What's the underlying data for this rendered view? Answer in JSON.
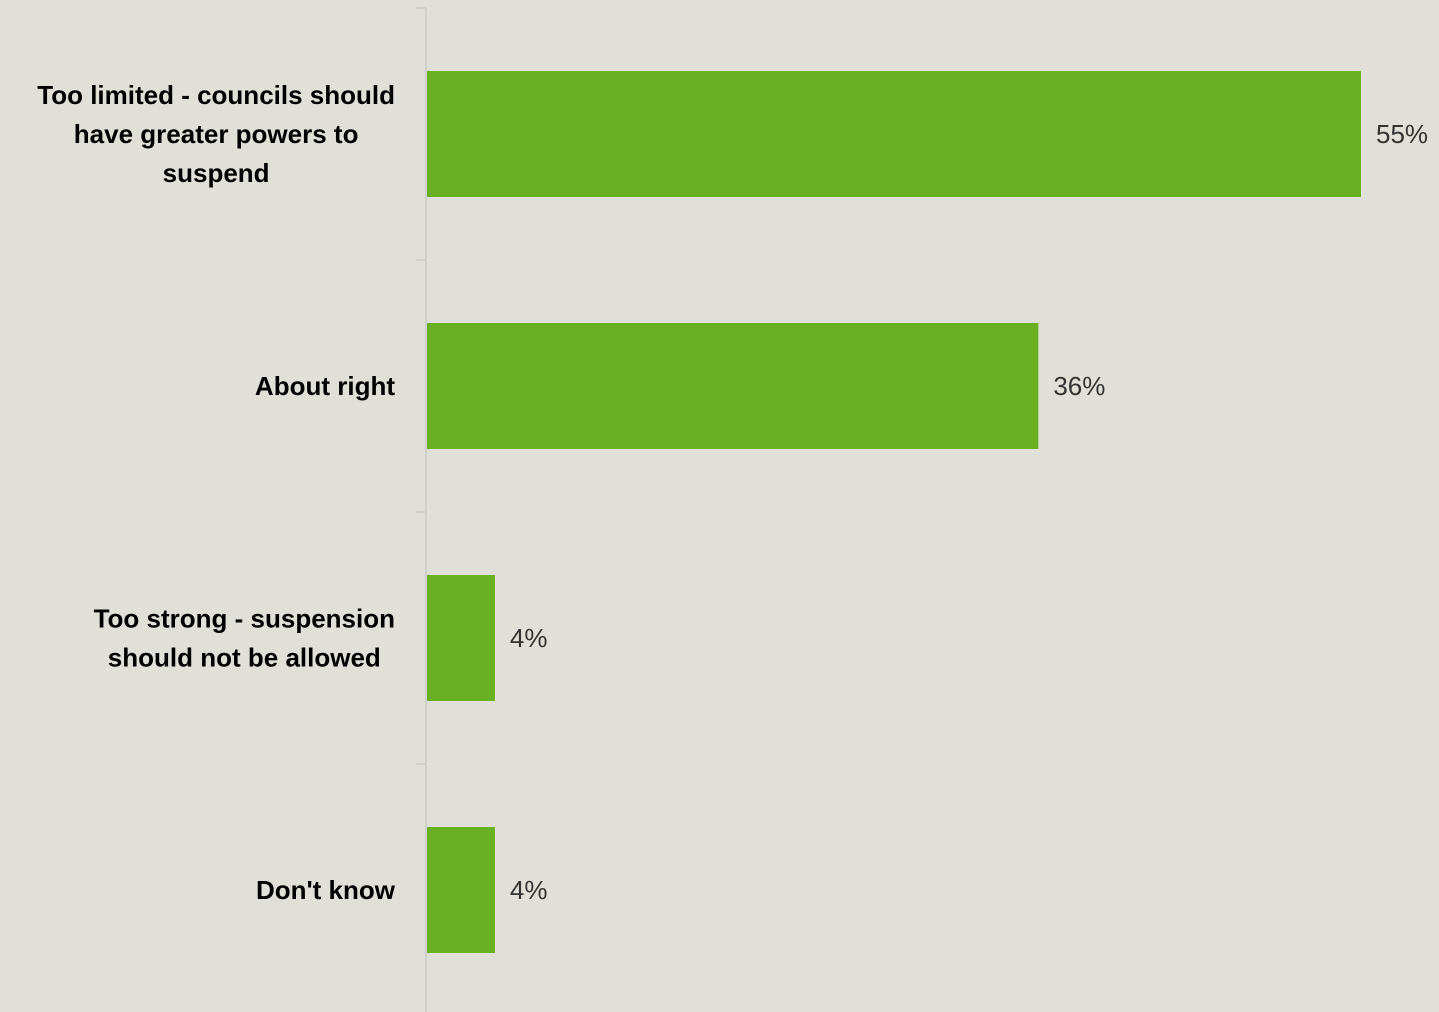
{
  "chart_data": {
    "type": "bar",
    "orientation": "horizontal",
    "categories": [
      [
        "Too limited - councils should",
        "have greater powers to",
        "suspend"
      ],
      [
        "About right"
      ],
      [
        "Too strong - suspension",
        "should not be allowed"
      ],
      [
        "Don't know"
      ]
    ],
    "values": [
      55,
      36,
      4,
      4
    ],
    "value_labels": [
      "55%",
      "36%",
      "4%",
      "4%"
    ],
    "xlim": [
      0,
      60
    ],
    "title": "",
    "xlabel": "",
    "ylabel": "",
    "grid": false,
    "legend": "none",
    "bar_color": "#6ab023",
    "background_color": "#e0e0d8"
  }
}
